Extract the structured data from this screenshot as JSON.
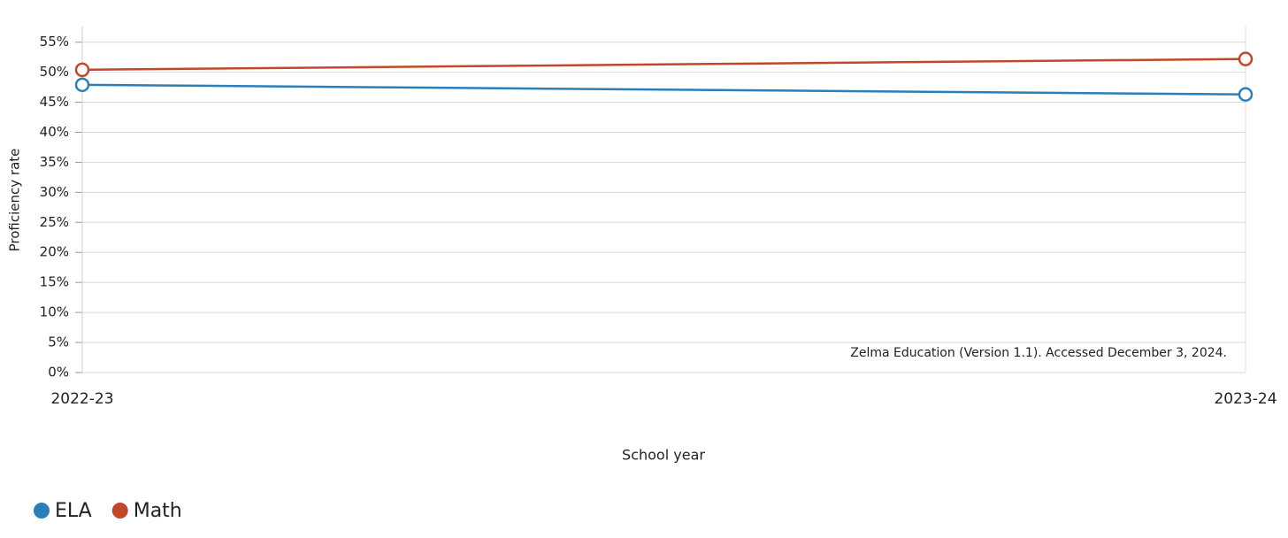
{
  "chart_data": {
    "type": "line",
    "x_label": "School year",
    "y_label": "Proficiency rate",
    "annotation": "Zelma Education (Version 1.1). Accessed December 3, 2024.",
    "categories": [
      "2022-23",
      "2023-24"
    ],
    "series": [
      {
        "name": "ELA",
        "color": "#2a7fba",
        "values": [
          47.9,
          46.3
        ]
      },
      {
        "name": "Math",
        "color": "#c0482a",
        "values": [
          50.4,
          52.2
        ]
      }
    ],
    "ylim": [
      0,
      57.6
    ],
    "yticks": [
      {
        "value": 0,
        "label": "0%"
      },
      {
        "value": 5,
        "label": "5%"
      },
      {
        "value": 10,
        "label": "10%"
      },
      {
        "value": 15,
        "label": "15%"
      },
      {
        "value": 20,
        "label": "20%"
      },
      {
        "value": 25,
        "label": "25%"
      },
      {
        "value": 30,
        "label": "30%"
      },
      {
        "value": 35,
        "label": "35%"
      },
      {
        "value": 40,
        "label": "40%"
      },
      {
        "value": 45,
        "label": "45%"
      },
      {
        "value": 50,
        "label": "50%"
      },
      {
        "value": 55,
        "label": "55%"
      }
    ],
    "grid": true,
    "legend": "bottom-left"
  }
}
